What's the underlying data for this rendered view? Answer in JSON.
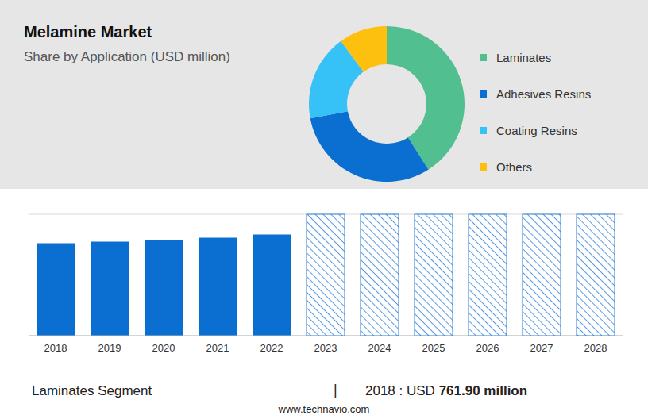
{
  "chart_data": [
    {
      "type": "pie",
      "title": "Melamine Market",
      "subtitle": "Share by Application (USD million)",
      "categories": [
        "Laminates",
        "Adhesives Resins",
        "Coating Resins",
        "Others"
      ],
      "values": [
        41,
        31,
        18,
        10
      ],
      "colors": [
        "#52bf90",
        "#0a6fd1",
        "#36c2f6",
        "#fdc00f"
      ],
      "legend": "right"
    },
    {
      "type": "bar",
      "categories": [
        "2018",
        "2019",
        "2020",
        "2021",
        "2022",
        "2023",
        "2024",
        "2025",
        "2026",
        "2027",
        "2028"
      ],
      "values": [
        761.9,
        775,
        788,
        808,
        834,
        null,
        null,
        null,
        null,
        null,
        null
      ],
      "color": "#0a6fd1",
      "ylim": [
        0,
        1000
      ],
      "yticks": [
        0,
        100,
        200,
        300,
        400,
        500,
        600,
        700,
        800,
        900,
        1000
      ],
      "grid": true,
      "tick_labels": "x"
    }
  ],
  "footer": {
    "label": "Laminates Segment",
    "separator": "|",
    "prefix": "2018 : USD",
    "value": "761.90 million"
  },
  "source": "www.technavio.com"
}
